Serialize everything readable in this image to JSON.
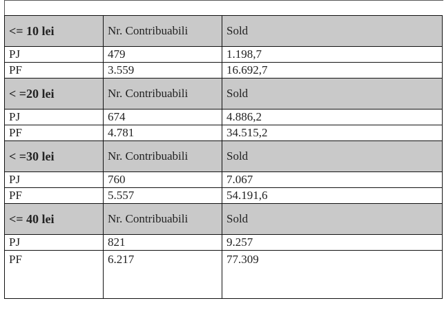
{
  "table": {
    "sections": [
      {
        "header": [
          "<= 10 lei",
          "Nr. Contribuabili",
          "Sold"
        ],
        "rows": [
          [
            "PJ",
            "479",
            "1.198,7"
          ],
          [
            "PF",
            "3.559",
            "16.692,7"
          ]
        ]
      },
      {
        "header": [
          "< =20 lei",
          "Nr. Contribuabili",
          "Sold"
        ],
        "rows": [
          [
            "PJ",
            "674",
            "4.886,2"
          ],
          [
            "PF",
            "4.781",
            "34.515,2"
          ]
        ]
      },
      {
        "header": [
          "< =30 lei",
          "Nr. Contribuabili",
          "Sold"
        ],
        "rows": [
          [
            "PJ",
            "760",
            "7.067"
          ],
          [
            "PF",
            "5.557",
            "54.191,6"
          ]
        ]
      },
      {
        "header": [
          "<= 40 lei",
          "Nr. Contribuabili",
          "Sold"
        ],
        "rows": [
          [
            "PJ",
            "821",
            "9.257"
          ],
          [
            "PF",
            "6.217",
            "77.309"
          ]
        ]
      }
    ]
  }
}
